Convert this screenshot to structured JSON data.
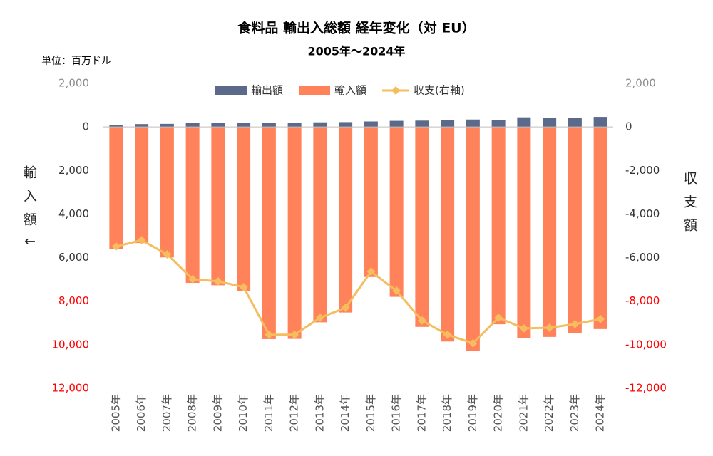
{
  "chart_data": {
    "type": "bar",
    "title": "食料品 輸出入総額 経年変化（対 EU）",
    "subtitle": "2005年～2024年",
    "unit_label": "単位：百万ドル",
    "ylabel": "輸入額↓",
    "y2label": "収支額",
    "categories": [
      "2005年",
      "2006年",
      "2007年",
      "2008年",
      "2009年",
      "2010年",
      "2011年",
      "2012年",
      "2013年",
      "2014年",
      "2015年",
      "2016年",
      "2017年",
      "2018年",
      "2019年",
      "2020年",
      "2021年",
      "2022年",
      "2023年",
      "2024年"
    ],
    "series": [
      {
        "name": "輸出額",
        "color": "#5b6a8a",
        "values": [
          100,
          130,
          140,
          170,
          180,
          180,
          200,
          190,
          210,
          220,
          250,
          280,
          290,
          310,
          340,
          300,
          440,
          420,
          420,
          460
        ]
      },
      {
        "name": "輸入額",
        "color": "#ff825a",
        "values": [
          -5590,
          -5330,
          -5990,
          -7160,
          -7270,
          -7530,
          -9740,
          -9730,
          -8970,
          -8520,
          -6890,
          -7800,
          -9180,
          -9850,
          -10270,
          -9060,
          -9690,
          -9640,
          -9470,
          -9280
        ]
      },
      {
        "name": "収支(右軸)",
        "color": "#f5bd5e",
        "type": "line",
        "axis": "y2",
        "values": [
          -5490,
          -5200,
          -5850,
          -6990,
          -7090,
          -7350,
          -9540,
          -9540,
          -8760,
          -8300,
          -6640,
          -7520,
          -8890,
          -9540,
          -9930,
          -8760,
          -9250,
          -9220,
          -9050,
          -8820
        ]
      }
    ],
    "ylim": [
      -12000,
      2000
    ],
    "yticks": [
      {
        "value": 2000,
        "label": "2,000"
      },
      0,
      {
        "value": -2000,
        "label": "2,000"
      },
      {
        "value": -4000,
        "label": "4,000"
      },
      {
        "value": -6000,
        "label": "6,000"
      },
      {
        "value": -8000,
        "label": "8,000"
      },
      {
        "value": -10000,
        "label": "10,000"
      },
      {
        "value": -12000,
        "label": "12,000"
      }
    ],
    "ytick_colors": [
      "#8c8c8c",
      "#444",
      "#333",
      "#333",
      "#333",
      "#ff0000",
      "#ff0000",
      "#ff0000"
    ],
    "y2lim": [
      -12000,
      2000
    ],
    "y2ticks": [
      {
        "value": 2000,
        "label": "2,000"
      },
      0,
      {
        "value": -2000,
        "label": "-2,000"
      },
      {
        "value": -4000,
        "label": "-4,000"
      },
      {
        "value": -6000,
        "label": "-6,000"
      },
      {
        "value": -8000,
        "label": "-8,000"
      },
      {
        "value": -10000,
        "label": "-10,000"
      },
      {
        "value": -12000,
        "label": "-12,000"
      }
    ],
    "y2tick_colors": [
      "#8c8c8c",
      "#444",
      "#333",
      "#333",
      "#333",
      "#ff0000",
      "#ff0000",
      "#ff0000"
    ],
    "legend": "top"
  }
}
